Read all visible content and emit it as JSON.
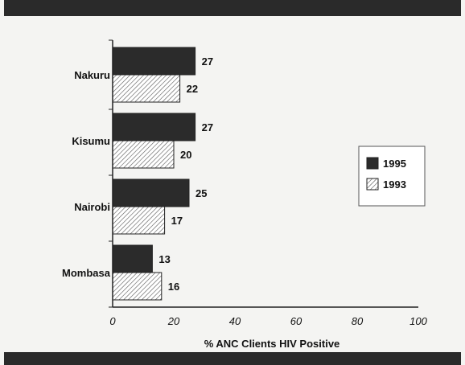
{
  "chart_data": {
    "type": "bar",
    "orientation": "horizontal",
    "categories": [
      "Nakuru",
      "Kisumu",
      "Nairobi",
      "Mombasa"
    ],
    "series": [
      {
        "name": "1995",
        "values": [
          27,
          27,
          25,
          13
        ],
        "color": "#2b2b2b",
        "fill": "solid"
      },
      {
        "name": "1993",
        "values": [
          22,
          20,
          17,
          16
        ],
        "color": "#ffffff",
        "fill": "diagonal-hatch"
      }
    ],
    "xlabel": "% ANC Clients HIV Positive",
    "ylabel": "",
    "xlim": [
      0,
      100
    ],
    "xticks": [
      0,
      20,
      40,
      60,
      80,
      100
    ],
    "legend_position": "right",
    "grid": false
  }
}
